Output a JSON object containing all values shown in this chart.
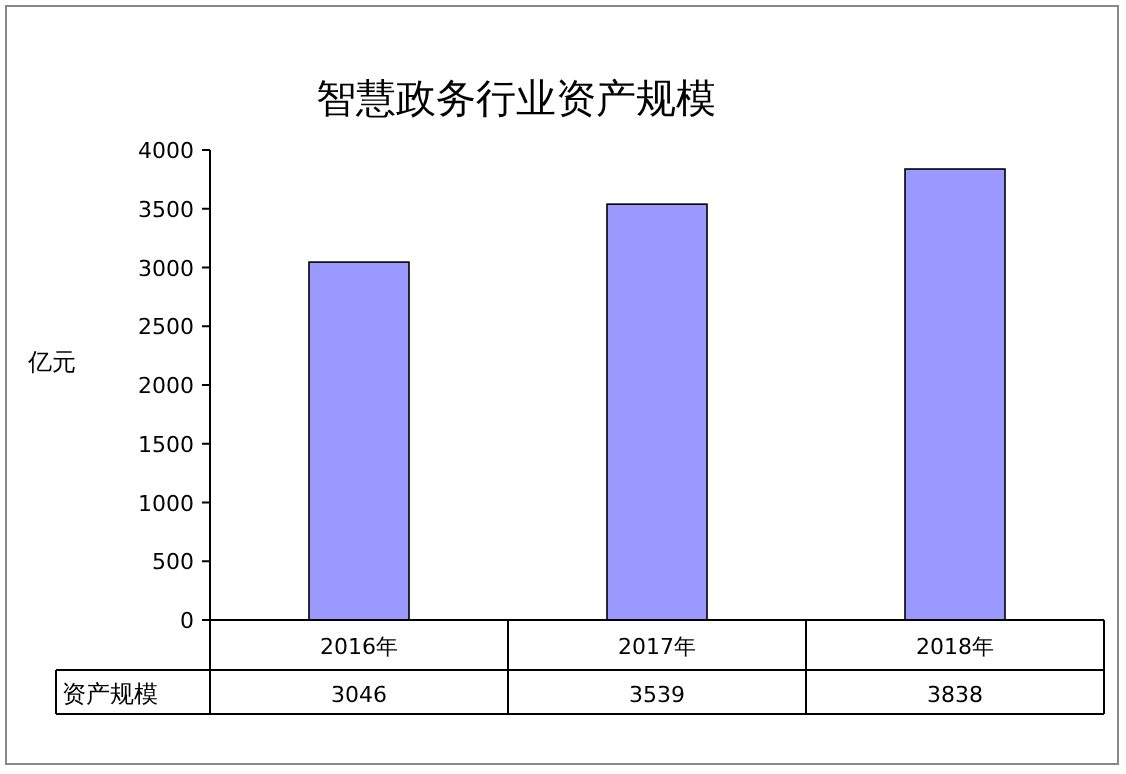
{
  "chart_data": {
    "type": "bar",
    "title": "智慧政务行业资产规模",
    "ylabel": "亿元",
    "categories": [
      "2016年",
      "2017年",
      "2018年"
    ],
    "series": [
      {
        "name": "资产规模",
        "color": "#9999ff",
        "values": [
          3046,
          3539,
          3838
        ]
      }
    ],
    "ylim": [
      0,
      4000
    ],
    "yticks": [
      0,
      500,
      1000,
      1500,
      2000,
      2500,
      3000,
      3500,
      4000
    ],
    "data_labels": true
  }
}
